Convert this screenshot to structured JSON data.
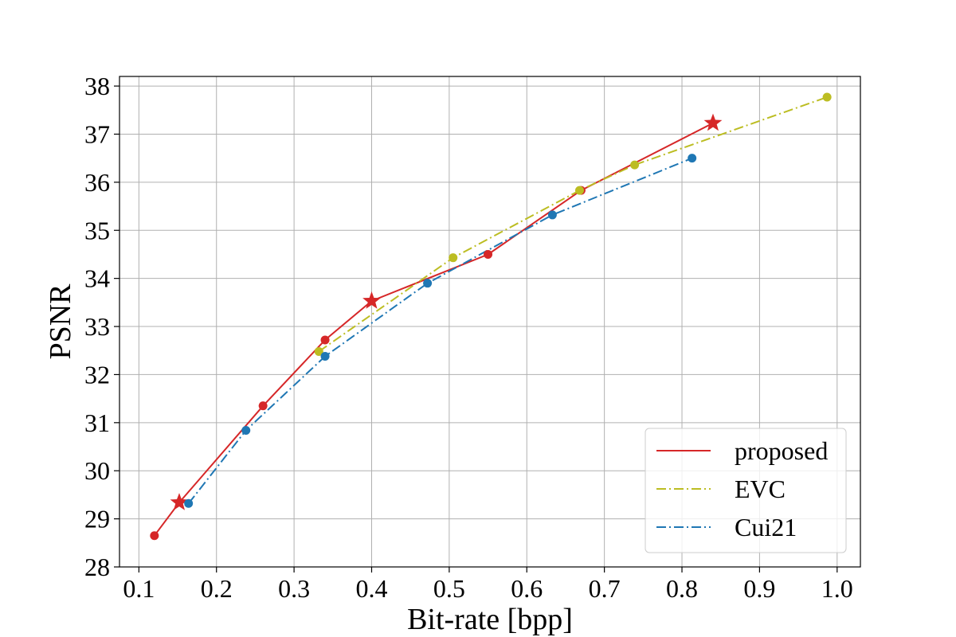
{
  "chart_data": {
    "type": "line",
    "title": "",
    "xlabel": "Bit-rate [bpp]",
    "ylabel": "PSNR",
    "xlim": [
      0.075,
      1.03
    ],
    "ylim": [
      28,
      38.2
    ],
    "xticks": [
      0.1,
      0.2,
      0.3,
      0.4,
      0.5,
      0.6,
      0.7,
      0.8,
      0.9,
      1.0
    ],
    "xtick_labels": [
      "0.1",
      "0.2",
      "0.3",
      "0.4",
      "0.5",
      "0.6",
      "0.7",
      "0.8",
      "0.9",
      "1.0"
    ],
    "yticks": [
      28,
      29,
      30,
      31,
      32,
      33,
      34,
      35,
      36,
      37,
      38
    ],
    "ytick_labels": [
      "28",
      "29",
      "30",
      "31",
      "32",
      "33",
      "34",
      "35",
      "36",
      "37",
      "38"
    ],
    "grid": true,
    "legend_position": "bottom-right",
    "series": [
      {
        "name": "proposed",
        "color": "#d62728",
        "linestyle": "solid",
        "x": [
          0.12,
          0.152,
          0.26,
          0.34,
          0.4,
          0.55,
          0.67,
          0.84
        ],
        "y": [
          28.65,
          29.34,
          31.35,
          32.72,
          33.53,
          34.5,
          35.83,
          37.23
        ],
        "markers": [
          "circle",
          "star",
          "circle",
          "circle",
          "star",
          "circle",
          "circle",
          "star"
        ]
      },
      {
        "name": "EVC",
        "color": "#bcbd22",
        "linestyle": "dashdot",
        "x": [
          0.332,
          0.505,
          0.668,
          0.739,
          0.987
        ],
        "y": [
          32.48,
          34.43,
          35.83,
          36.36,
          37.77
        ],
        "markers": [
          "circle",
          "circle",
          "circle",
          "circle",
          "circle"
        ]
      },
      {
        "name": "Cui21",
        "color": "#1f77b4",
        "linestyle": "dashdot",
        "x": [
          0.164,
          0.238,
          0.34,
          0.472,
          0.633,
          0.813
        ],
        "y": [
          29.32,
          30.84,
          32.38,
          33.9,
          35.32,
          36.5
        ],
        "markers": [
          "circle",
          "circle",
          "circle",
          "circle",
          "circle",
          "circle"
        ]
      }
    ]
  }
}
